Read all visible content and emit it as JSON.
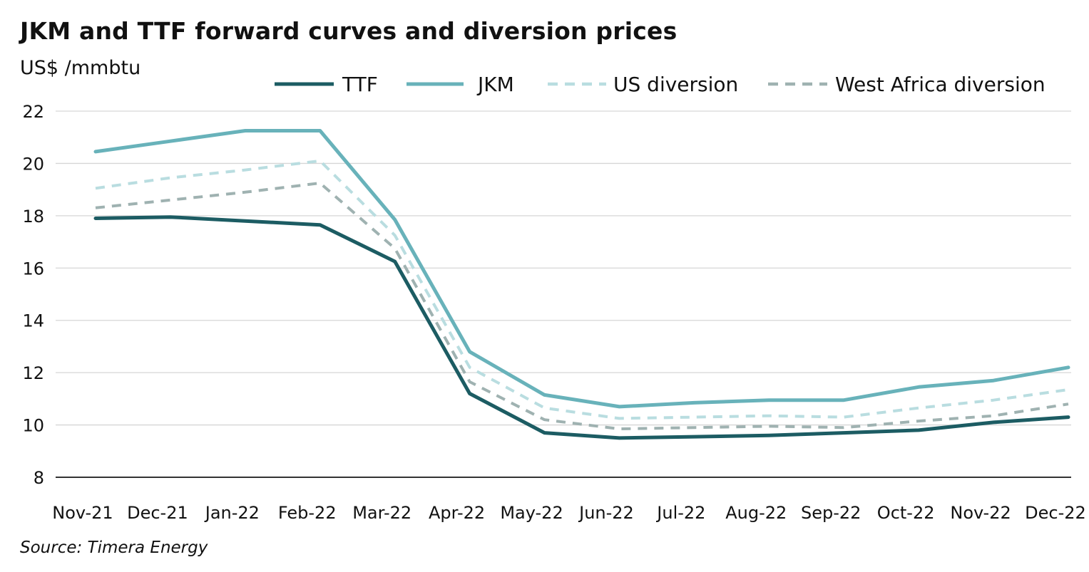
{
  "title": "JKM and TTF forward curves and diversion prices",
  "unit": "US$ /mmbtu",
  "source": "Source: Timera Energy",
  "chart_data": {
    "type": "line",
    "title": "JKM and TTF forward curves and diversion prices",
    "ylabel": "US$ /mmbtu",
    "xlabel": "",
    "ylim": [
      8,
      22
    ],
    "yticks": [
      "8",
      "10",
      "12",
      "14",
      "16",
      "18",
      "20",
      "22"
    ],
    "grid": true,
    "legend_position": "top-right",
    "categories": [
      "Nov-21",
      "Dec-21",
      "Jan-22",
      "Feb-22",
      "Mar-22",
      "Apr-22",
      "May-22",
      "Jun-22",
      "Jul-22",
      "Aug-22",
      "Sep-22",
      "Oct-22",
      "Nov-22",
      "Dec-22"
    ],
    "series": [
      {
        "name": "TTF",
        "color": "#1c5c63",
        "style": "solid",
        "values": [
          17.9,
          17.95,
          17.8,
          17.65,
          16.25,
          11.2,
          9.7,
          9.5,
          9.55,
          9.6,
          9.7,
          9.8,
          10.1,
          10.3
        ]
      },
      {
        "name": "JKM",
        "color": "#68b2ba",
        "style": "solid",
        "values": [
          20.45,
          20.85,
          21.25,
          21.25,
          17.85,
          12.8,
          11.15,
          10.7,
          10.85,
          10.95,
          10.95,
          11.45,
          11.7,
          12.2
        ]
      },
      {
        "name": "US diversion",
        "color": "#b9dde0",
        "style": "dashed",
        "values": [
          19.05,
          19.45,
          19.75,
          20.1,
          17.25,
          12.2,
          10.65,
          10.25,
          10.3,
          10.35,
          10.3,
          10.65,
          10.95,
          11.35
        ]
      },
      {
        "name": "West Africa diversion",
        "color": "#9fb2b1",
        "style": "dashed",
        "values": [
          18.3,
          18.6,
          18.9,
          19.25,
          16.75,
          11.65,
          10.2,
          9.85,
          9.9,
          9.95,
          9.9,
          10.15,
          10.35,
          10.8
        ]
      }
    ]
  }
}
